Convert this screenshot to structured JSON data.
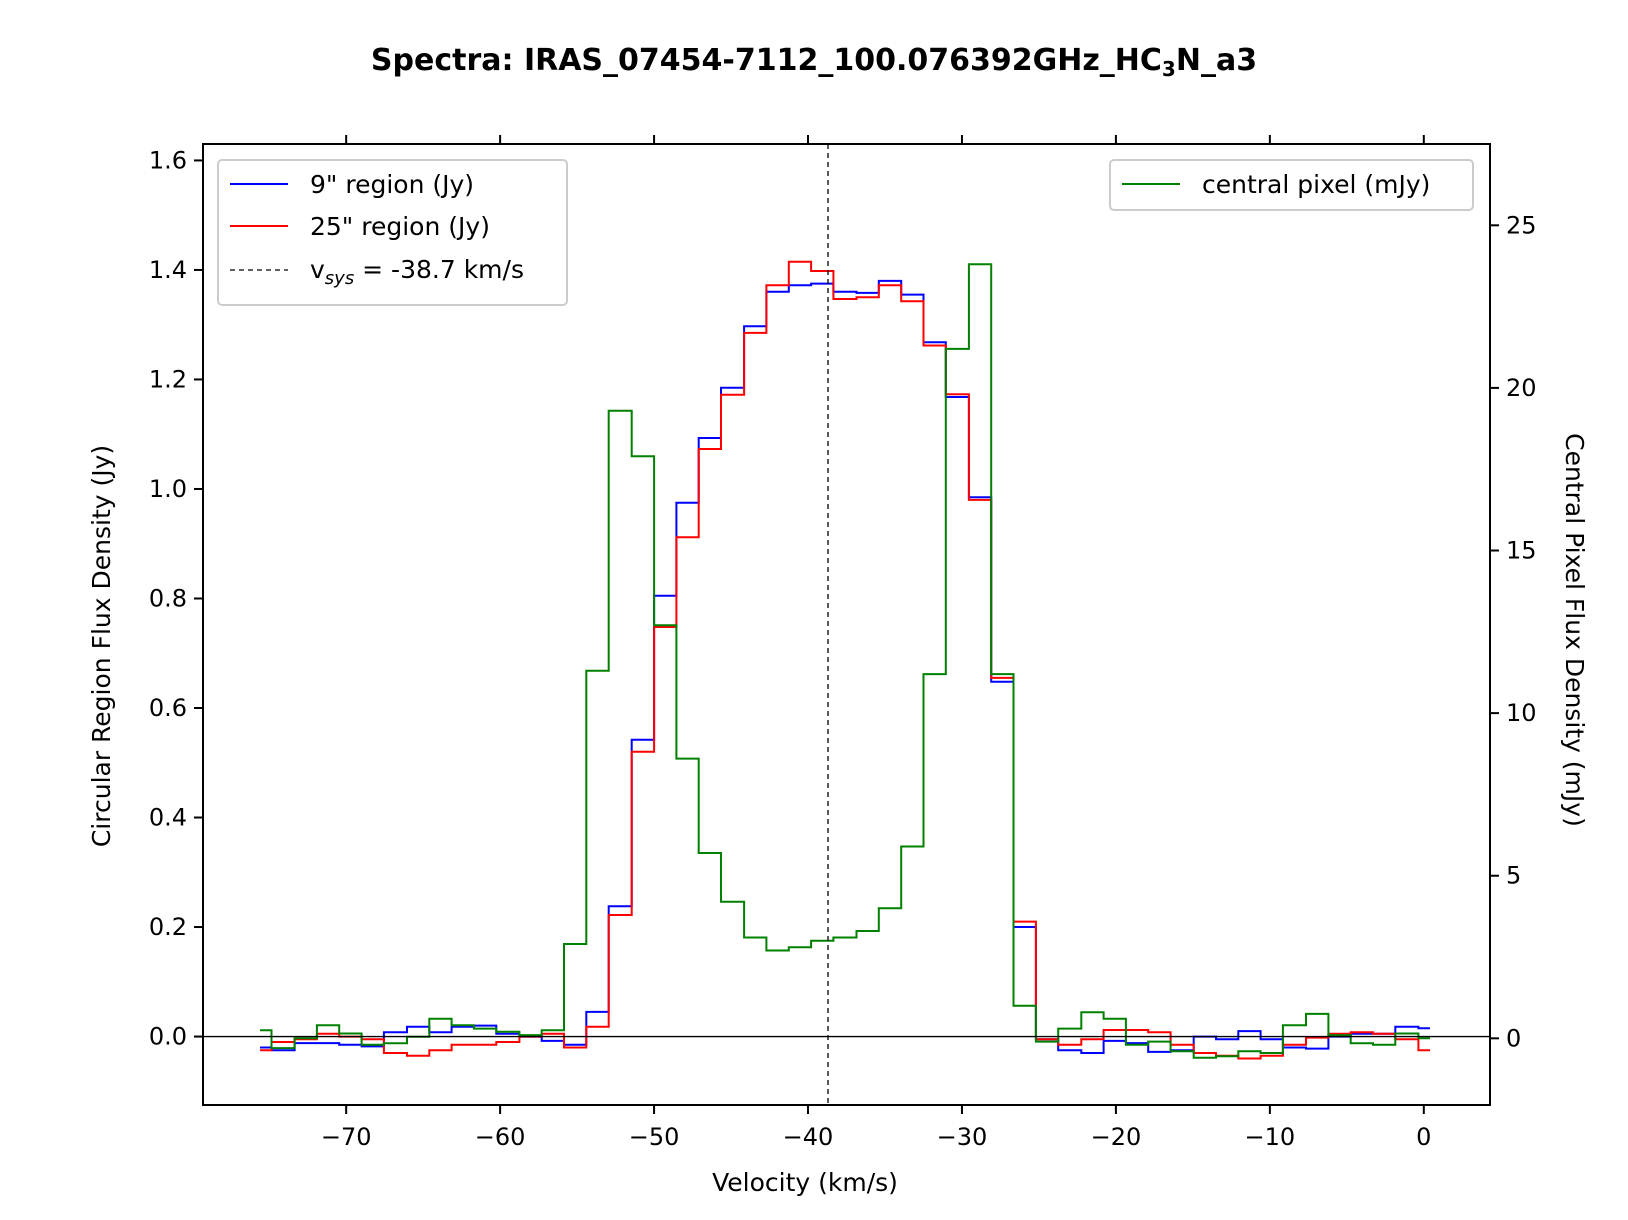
{
  "chart_data": {
    "type": "line",
    "drawstyle": "steps-mid",
    "title": {
      "prefix": "Spectra: IRAS_07454-7112_100.076392GHz_HC",
      "sub": "3",
      "suffix": "N_a3"
    },
    "xlabel": "Velocity (km/s)",
    "ylabel_left": "Circular Region Flux Density (Jy)",
    "ylabel_right": "Central Pixel Flux Density (mJy)",
    "xlim": [
      -79.3,
      4.3
    ],
    "ylim_left": [
      -0.125,
      1.63
    ],
    "ylim_right": [
      -2.05,
      27.5
    ],
    "xticks": [
      -70,
      -60,
      -50,
      -40,
      -30,
      -20,
      -10,
      0
    ],
    "xtick_labels": [
      "−70",
      "−60",
      "−50",
      "−40",
      "−30",
      "−20",
      "−10",
      "0"
    ],
    "yticks_left": [
      0.0,
      0.2,
      0.4,
      0.6,
      0.8,
      1.0,
      1.2,
      1.4,
      1.6
    ],
    "ytick_labels_left": [
      "0.0",
      "0.2",
      "0.4",
      "0.6",
      "0.8",
      "1.0",
      "1.2",
      "1.4",
      "1.6"
    ],
    "yticks_right": [
      0,
      5,
      10,
      15,
      20,
      25
    ],
    "ytick_labels_right": [
      "0",
      "5",
      "10",
      "15",
      "20",
      "25"
    ],
    "vsys": -38.7,
    "grid": false,
    "x": [
      -75.6,
      -74.1,
      -72.6,
      -71.2,
      -69.7,
      -68.3,
      -66.8,
      -65.3,
      -63.9,
      -62.4,
      -61.0,
      -59.5,
      -58.0,
      -56.6,
      -55.1,
      -53.7,
      -52.2,
      -50.7,
      -49.3,
      -47.8,
      -46.4,
      -44.9,
      -43.4,
      -42.0,
      -40.5,
      -39.1,
      -37.6,
      -36.1,
      -34.7,
      -33.2,
      -31.8,
      -30.3,
      -28.8,
      -27.4,
      -25.9,
      -24.5,
      -23.0,
      -21.5,
      -20.1,
      -18.6,
      -17.2,
      -15.7,
      -14.2,
      -12.8,
      -11.3,
      -9.9,
      -8.4,
      -6.9,
      -5.5,
      -4.0,
      -2.6,
      -1.1,
      0.4
    ],
    "series": [
      {
        "name": "9\" region (Jy)",
        "axis": "left",
        "color": "#0000ff",
        "values": [
          -0.02,
          -0.025,
          -0.012,
          -0.012,
          -0.015,
          -0.018,
          0.008,
          0.018,
          0.008,
          0.018,
          0.02,
          0.005,
          0.0,
          -0.008,
          -0.015,
          0.045,
          0.238,
          0.542,
          0.805,
          0.975,
          1.093,
          1.185,
          1.297,
          1.36,
          1.372,
          1.375,
          1.36,
          1.358,
          1.38,
          1.355,
          1.268,
          1.168,
          0.985,
          0.648,
          0.2,
          -0.005,
          -0.025,
          -0.03,
          -0.008,
          -0.012,
          -0.028,
          -0.025,
          0.0,
          -0.005,
          0.01,
          -0.005,
          -0.02,
          -0.022,
          0.0,
          0.005,
          0.005,
          0.018,
          0.015
        ]
      },
      {
        "name": "25\" region (Jy)",
        "axis": "left",
        "color": "#ff0000",
        "values": [
          -0.025,
          -0.01,
          -0.005,
          0.005,
          0.0,
          -0.005,
          -0.03,
          -0.035,
          -0.025,
          -0.015,
          -0.015,
          -0.01,
          0.0,
          0.005,
          -0.02,
          0.018,
          0.222,
          0.52,
          0.748,
          0.912,
          1.073,
          1.172,
          1.285,
          1.372,
          1.415,
          1.398,
          1.347,
          1.35,
          1.372,
          1.343,
          1.262,
          1.173,
          0.98,
          0.655,
          0.21,
          -0.005,
          -0.015,
          -0.005,
          0.012,
          0.012,
          0.008,
          -0.015,
          -0.03,
          -0.035,
          -0.04,
          -0.035,
          -0.015,
          -0.002,
          0.005,
          0.008,
          0.005,
          -0.005,
          -0.025
        ]
      },
      {
        "name": "central pixel (mJy)",
        "axis": "right",
        "color": "#008000",
        "values": [
          0.25,
          -0.3,
          0.0,
          0.4,
          0.15,
          -0.2,
          -0.15,
          0.05,
          0.6,
          0.4,
          0.3,
          0.2,
          0.1,
          0.25,
          2.9,
          11.3,
          19.3,
          17.9,
          12.7,
          8.6,
          5.7,
          4.2,
          3.1,
          2.7,
          2.8,
          3.0,
          3.1,
          3.3,
          4.0,
          5.9,
          11.2,
          21.2,
          23.8,
          11.2,
          1.0,
          -0.1,
          0.3,
          0.8,
          0.6,
          -0.2,
          -0.1,
          -0.4,
          -0.6,
          -0.55,
          -0.4,
          -0.45,
          0.4,
          0.75,
          0.1,
          -0.15,
          -0.2,
          0.15,
          0.0
        ]
      }
    ],
    "legend_left": {
      "placement": "upper-left",
      "entries": [
        {
          "label": "9\" region (Jy)",
          "color": "#0000ff",
          "style": "solid"
        },
        {
          "label": "25\" region (Jy)",
          "color": "#ff0000",
          "style": "solid"
        },
        {
          "label_prefix": "v",
          "label_sub": "sys",
          "label_suffix": " = -38.7 km/s",
          "color": "#000000",
          "style": "dashed"
        }
      ]
    },
    "legend_right": {
      "placement": "upper-right",
      "entries": [
        {
          "label": "central pixel (mJy)",
          "color": "#008000",
          "style": "solid"
        }
      ]
    }
  }
}
